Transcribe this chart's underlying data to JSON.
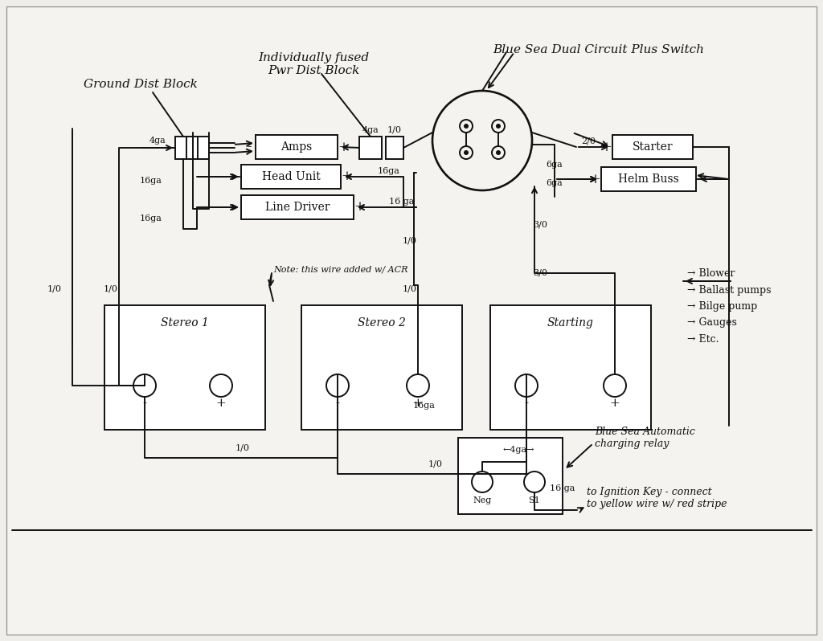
{
  "bg_color": "#f0eeeb",
  "paper_color": "#eeece8",
  "line_color": "#111111",
  "lw": 1.4,
  "figsize": [
    10.24,
    7.98
  ],
  "dpi": 100,
  "labels": {
    "ground_dist_block": "Ground Dist Block",
    "pwr_dist_block": "Individually fused\nPwr Dist Block",
    "blue_sea_switch": "Blue Sea Dual Circuit Plus Switch",
    "amps": "Amps",
    "head_unit": "Head Unit",
    "line_driver": "Line Driver",
    "starter": "Starter",
    "helm_buss": "Helm Buss",
    "stereo1": "Stereo 1",
    "stereo2": "Stereo 2",
    "starting": "Starting",
    "acr_label": "Blue Sea Automatic\ncharging relay",
    "ignition": "to Ignition Key - connect\nto yellow wire w/ red stripe",
    "note_acr": "Note: this wire added w/ ACR",
    "blower": "→ Blower",
    "ballast": "→ Ballast pumps",
    "bilge": "→ Bilge pump",
    "gauges": "→ Gauges",
    "etc": "→ Etc."
  }
}
